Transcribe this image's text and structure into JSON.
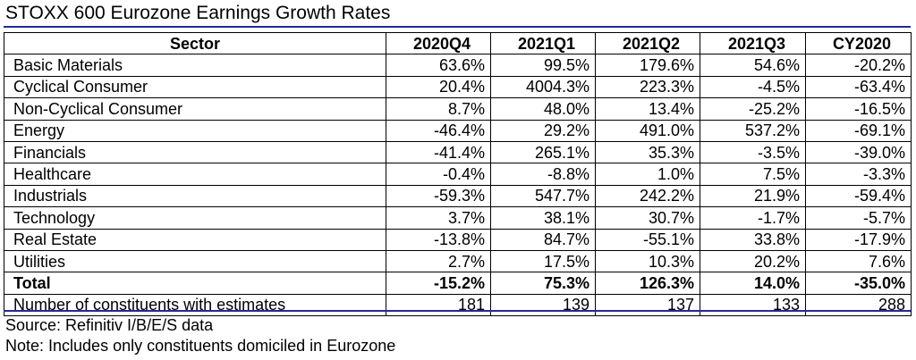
{
  "title": "STOXX 600 Eurozone Earnings Growth Rates",
  "table": {
    "headers": [
      "Sector",
      "2020Q4",
      "2021Q1",
      "2021Q2",
      "2021Q3",
      "CY2020"
    ],
    "rows": [
      [
        "Basic Materials",
        "63.6%",
        "99.5%",
        "179.6%",
        "54.6%",
        "-20.2%"
      ],
      [
        "Cyclical Consumer",
        "20.4%",
        "4004.3%",
        "223.3%",
        "-4.5%",
        "-63.4%"
      ],
      [
        "Non-Cyclical Consumer",
        "8.7%",
        "48.0%",
        "13.4%",
        "-25.2%",
        "-16.5%"
      ],
      [
        "Energy",
        "-46.4%",
        "29.2%",
        "491.0%",
        "537.2%",
        "-69.1%"
      ],
      [
        "Financials",
        "-41.4%",
        "265.1%",
        "35.3%",
        "-3.5%",
        "-39.0%"
      ],
      [
        "Healthcare",
        "-0.4%",
        "-8.8%",
        "1.0%",
        "7.5%",
        "-3.3%"
      ],
      [
        "Industrials",
        "-59.3%",
        "547.7%",
        "242.2%",
        "21.9%",
        "-59.4%"
      ],
      [
        "Technology",
        "3.7%",
        "38.1%",
        "30.7%",
        "-1.7%",
        "-5.7%"
      ],
      [
        "Real Estate",
        "-13.8%",
        "84.7%",
        "-55.1%",
        "33.8%",
        "-17.9%"
      ],
      [
        "Utilities",
        "2.7%",
        "17.5%",
        "10.3%",
        "20.2%",
        "7.6%"
      ],
      [
        "Total",
        "-15.2%",
        "75.3%",
        "126.3%",
        "14.0%",
        "-35.0%"
      ],
      [
        "Number of constituents with estimates",
        "181",
        "139",
        "137",
        "133",
        "288"
      ]
    ]
  },
  "source": "Source: Refinitiv I/B/E/S data",
  "note": "Note: Includes only constituents domiciled in Eurozone",
  "colors": {
    "rule": "#1f2d8f"
  }
}
